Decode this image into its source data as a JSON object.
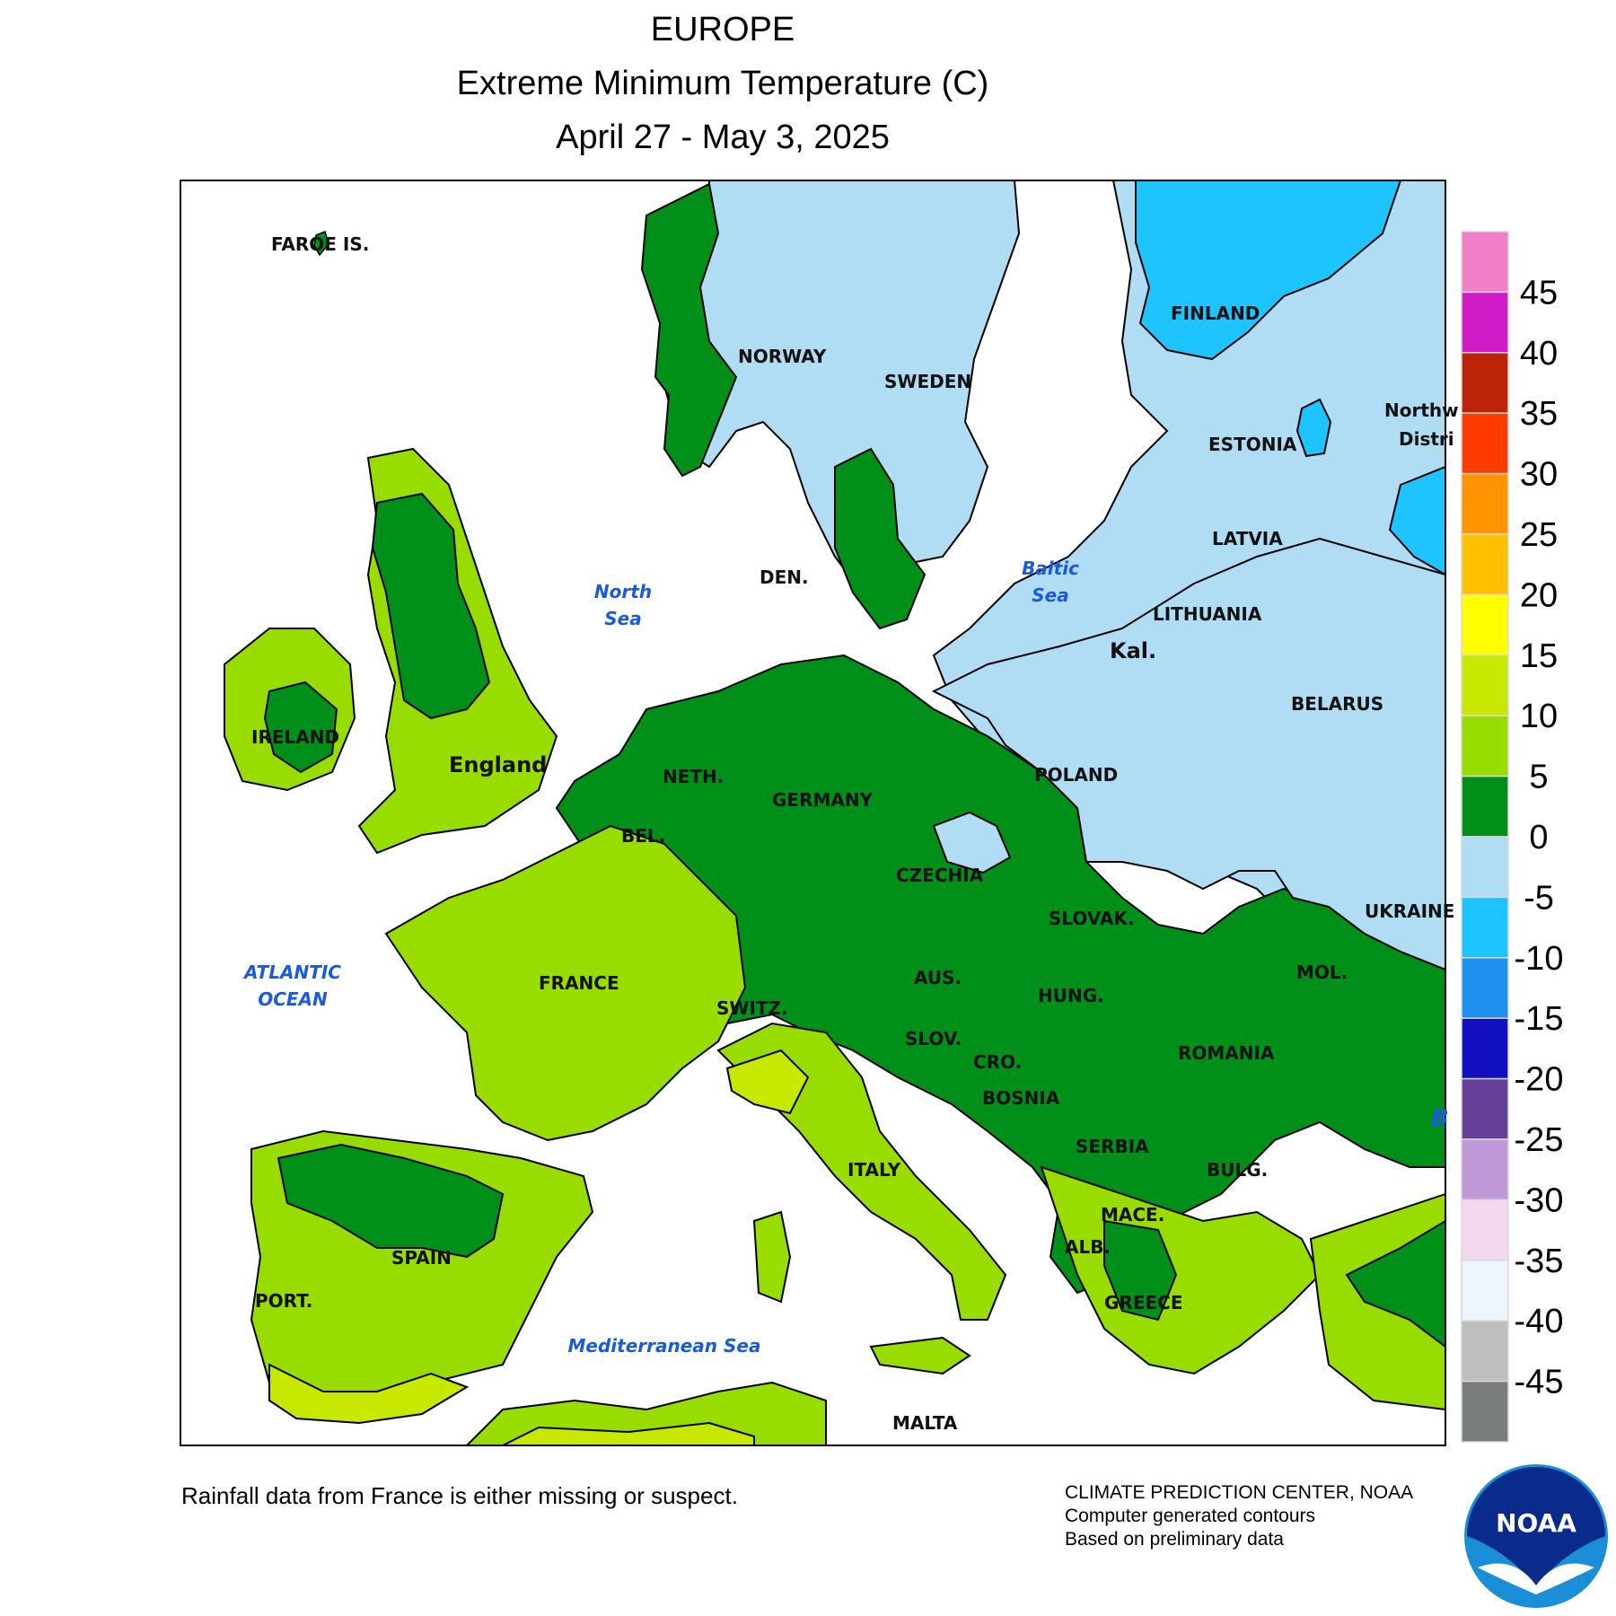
{
  "header": {
    "region": "EUROPE",
    "variable": "Extreme Minimum Temperature (C)",
    "period": "April 27 - May 3, 2025"
  },
  "map": {
    "labels": {
      "faroe": "FAROE IS.",
      "norway": "NORWAY",
      "sweden": "SWEDEN",
      "finland": "FINLAND",
      "estonia": "ESTONIA",
      "latvia": "LATVIA",
      "lithuania": "LITHUANIA",
      "kal": "Kal.",
      "belarus": "BELARUS",
      "nw_district": "Northw",
      "nw_district2": "Distri",
      "den": "DEN.",
      "ireland": "IRELAND",
      "england": "England",
      "neth": "NETH.",
      "germany": "GERMANY",
      "poland": "POLAND",
      "bel": "BEL.",
      "czechia": "CZECHIA",
      "slovak": "SLOVAK.",
      "ukraine": "UKRAINE",
      "france": "FRANCE",
      "switz": "SWITZ.",
      "aus": "AUS.",
      "hung": "HUNG.",
      "mol": "MOL.",
      "slov": "SLOV.",
      "cro": "CRO.",
      "bosnia": "BOSNIA",
      "romania": "ROMANIA",
      "serbia": "SERBIA",
      "bulg": "BULG.",
      "italy": "ITALY",
      "mace": "MACE.",
      "alb": "ALB.",
      "spain": "SPAIN",
      "port": "PORT.",
      "greece": "GREECE",
      "malta": "MALTA"
    },
    "water": {
      "north_sea_1": "North",
      "north_sea_2": "Sea",
      "baltic_1": "Baltic",
      "baltic_2": "Sea",
      "atlantic_1": "ATLANTIC",
      "atlantic_2": "OCEAN",
      "med": "Mediterranean Sea",
      "black_partial": "B"
    }
  },
  "legend": {
    "bins": [
      {
        "color": "#f07fc8"
      },
      {
        "color": "#d01cc6"
      },
      {
        "color": "#bd2306"
      },
      {
        "color": "#ff3b00"
      },
      {
        "color": "#ff9400"
      },
      {
        "color": "#ffc000"
      },
      {
        "color": "#ffff00"
      },
      {
        "color": "#c9e800"
      },
      {
        "color": "#99dd00"
      },
      {
        "color": "#00901a"
      },
      {
        "color": "#b0dcf4"
      },
      {
        "color": "#1ec4ff"
      },
      {
        "color": "#1e90ee"
      },
      {
        "color": "#1010c0"
      },
      {
        "color": "#663f98"
      },
      {
        "color": "#c098d8"
      },
      {
        "color": "#f3d8f0"
      },
      {
        "color": "#edf6fc"
      },
      {
        "color": "#bebebe"
      },
      {
        "color": "#7a7d7d"
      }
    ],
    "ticks": [
      "45",
      "40",
      "35",
      "30",
      "25",
      "20",
      "15",
      "10",
      "5",
      "0",
      "-5",
      "-10",
      "-15",
      "-20",
      "-25",
      "-30",
      "-35",
      "-40",
      "-45"
    ]
  },
  "footer": {
    "note": "Rainfall data from France is either missing or suspect.",
    "credit_1": "CLIMATE PREDICTION CENTER, NOAA",
    "credit_2": "Computer generated contours",
    "credit_3": "Based on preliminary data",
    "logo_text": "NOAA"
  },
  "colors": {
    "sea": "#ffffff",
    "cold_below_0": "#b0dcf4",
    "zero_to_5": "#00901a",
    "five_to_10": "#99dd00",
    "ten_to_15": "#c9e800",
    "minus5_to_minus10": "#1ec4ff"
  }
}
